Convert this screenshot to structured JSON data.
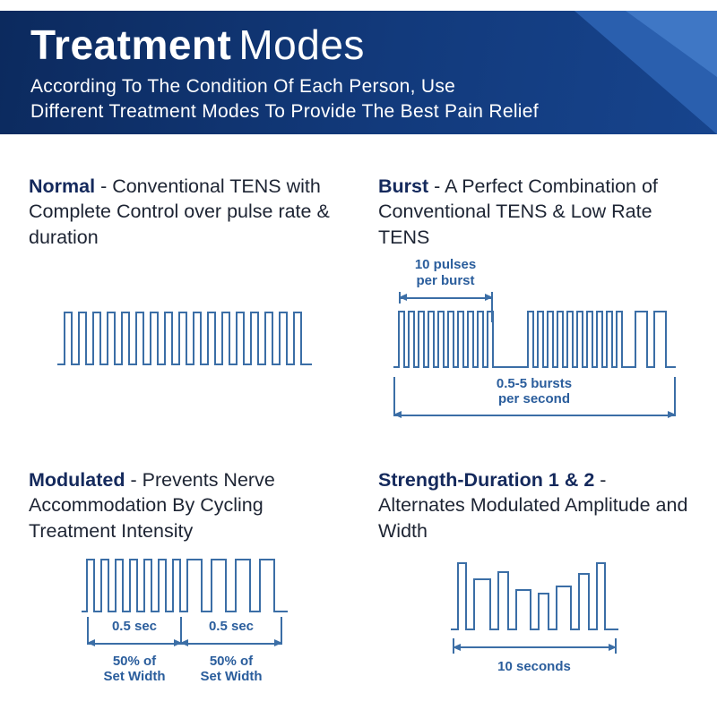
{
  "header": {
    "title_bold": "Treatment",
    "title_light": "Modes",
    "subtitle_line1": "According To The Condition Of Each Person, Use",
    "subtitle_line2": "Different Treatment Modes To Provide The Best Pain Relief"
  },
  "sections": {
    "normal": {
      "name": "Normal",
      "desc": "- Conventional TENS with Complete Control over pulse rate & duration"
    },
    "burst": {
      "name": "Burst",
      "desc": "- A Perfect Combination of Conventional TENS & Low Rate TENS",
      "top_label_line1": "10 pulses",
      "top_label_line2": "per burst",
      "bottom_label_line1": "0.5-5 bursts",
      "bottom_label_line2": "per second"
    },
    "modulated": {
      "name": "Modulated",
      "desc": "- Prevents Nerve Accommodation By Cycling Treatment Intensity",
      "seg1_time": "0.5 sec",
      "seg2_time": "0.5 sec",
      "seg1_width_line1": "50% of",
      "seg1_width_line2": "Set Width",
      "seg2_width_line1": "50% of",
      "seg2_width_line2": "Set Width"
    },
    "strength": {
      "name": "Strength-Duration 1 & 2",
      "desc": "- Alternates Modulated Amplitude and Width",
      "bottom_label": "10 seconds"
    }
  },
  "waves": {
    "normal": {
      "h": 64,
      "lead": 8,
      "trail": 4,
      "seg": [
        {
          "n": 17,
          "w": 8,
          "g": 8,
          "p": 58
        }
      ]
    },
    "burst": {
      "h": 68,
      "lead": 6,
      "trail": 3,
      "seg": [
        {
          "n": 10,
          "w": 6,
          "g": 5,
          "p": 62
        },
        {
          "gap": 34
        },
        {
          "n": 10,
          "w": 6,
          "g": 5,
          "p": 62
        },
        {
          "gap": 10
        },
        {
          "n": 2,
          "w": 13,
          "g": 8,
          "p": 62
        }
      ]
    },
    "modulated": {
      "h": 64,
      "lead": 6,
      "trail": 4,
      "seg": [
        {
          "n": 7,
          "w": 8,
          "g": 8,
          "p": 58
        },
        {
          "n": 4,
          "w": 16,
          "g": 11,
          "p": 58
        }
      ]
    },
    "strength": {
      "h": 80,
      "lead": 8,
      "trail": 6,
      "seg": [
        {
          "w": 9,
          "g": 9,
          "p": 74
        },
        {
          "w": 18,
          "g": 9,
          "p": 56
        },
        {
          "w": 11,
          "g": 9,
          "p": 64
        },
        {
          "w": 16,
          "g": 9,
          "p": 44
        },
        {
          "w": 11,
          "g": 9,
          "p": 40
        },
        {
          "w": 16,
          "g": 9,
          "p": 48
        },
        {
          "w": 11,
          "g": 9,
          "p": 62
        },
        {
          "w": 9,
          "g": 9,
          "p": 74
        }
      ]
    }
  },
  "colors": {
    "wave": "#3b6ea6",
    "annotation": "#2a5d9c",
    "heading": "#14295c",
    "header_bg_start": "#0c2a5e",
    "header_bg_end": "#17448d",
    "corner_accent": "#2a5fae"
  }
}
